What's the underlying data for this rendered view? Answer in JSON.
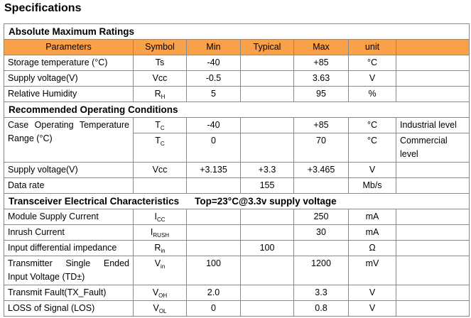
{
  "title": "Specifications",
  "columns": [
    "Parameters",
    "Symbol",
    "Min",
    "Typical",
    "Max",
    "unit"
  ],
  "sections": [
    {
      "title": "Absolute Maximum Ratings",
      "header": true,
      "rows": [
        {
          "parameter": "Storage temperature (°C)",
          "symbol": {
            "base": "Ts"
          },
          "min": "-40",
          "max": "+85",
          "unit": "°C"
        },
        {
          "parameter": "Supply voltage(V)",
          "symbol": {
            "base": "Vcc"
          },
          "min": "-0.5",
          "max": "3.63",
          "unit": "V"
        },
        {
          "parameter": "Relative Humidity",
          "symbol": {
            "base": "R",
            "sub": "H"
          },
          "min": "5",
          "max": "95",
          "unit": "%"
        }
      ]
    },
    {
      "title": "Recommended Operating Conditions",
      "rows": [
        {
          "parameter": "Case Operating Temperature Range (°C)",
          "symbol": {
            "base": "T",
            "sub": "C"
          },
          "min": "-40",
          "max": "+85",
          "unit": "°C",
          "note": "Industrial level"
        },
        {
          "symbol": {
            "base": "T",
            "sub": "C"
          },
          "min": "0",
          "max": "70",
          "unit": "°C",
          "note": "Commercial level"
        },
        {
          "parameter": "Supply voltage(V)",
          "symbol": {
            "base": "Vcc"
          },
          "min": "+3.135",
          "typical": "+3.3",
          "max": "+3.465",
          "unit": "V"
        },
        {
          "parameter": "Data rate",
          "typical": "155",
          "unit": "Mb/s"
        }
      ]
    },
    {
      "title": "Transceiver Electrical Characteristics",
      "condition": "Top=23°C@3.3v supply voltage",
      "rows": [
        {
          "parameter": "Module Supply Current",
          "symbol": {
            "base": "I",
            "sub": "CC"
          },
          "max": "250",
          "unit": "mA"
        },
        {
          "parameter": "Inrush Current",
          "symbol": {
            "base": "I",
            "sub": "RUSH"
          },
          "max": "30",
          "unit": "mA"
        },
        {
          "parameter": "Input differential impedance",
          "symbol": {
            "base": "R",
            "sub": "in"
          },
          "typical": "100",
          "unit": "Ω"
        },
        {
          "parameter": "Transmitter Single Ended Input Voltage (TD±)",
          "symbol": {
            "base": "V",
            "sub": "in"
          },
          "min": "100",
          "max": "1200",
          "unit": "mV"
        },
        {
          "parameter": "Transmit Fault(TX_Fault)",
          "symbol": {
            "base": "V",
            "sub": "OH"
          },
          "min": "2.0",
          "max": "3.3",
          "unit": "V"
        },
        {
          "parameter": "LOSS of Signal (LOS)",
          "symbol": {
            "base": "V",
            "sub": "OL"
          },
          "min": "0",
          "max": "0.8",
          "unit": "V"
        }
      ]
    }
  ]
}
